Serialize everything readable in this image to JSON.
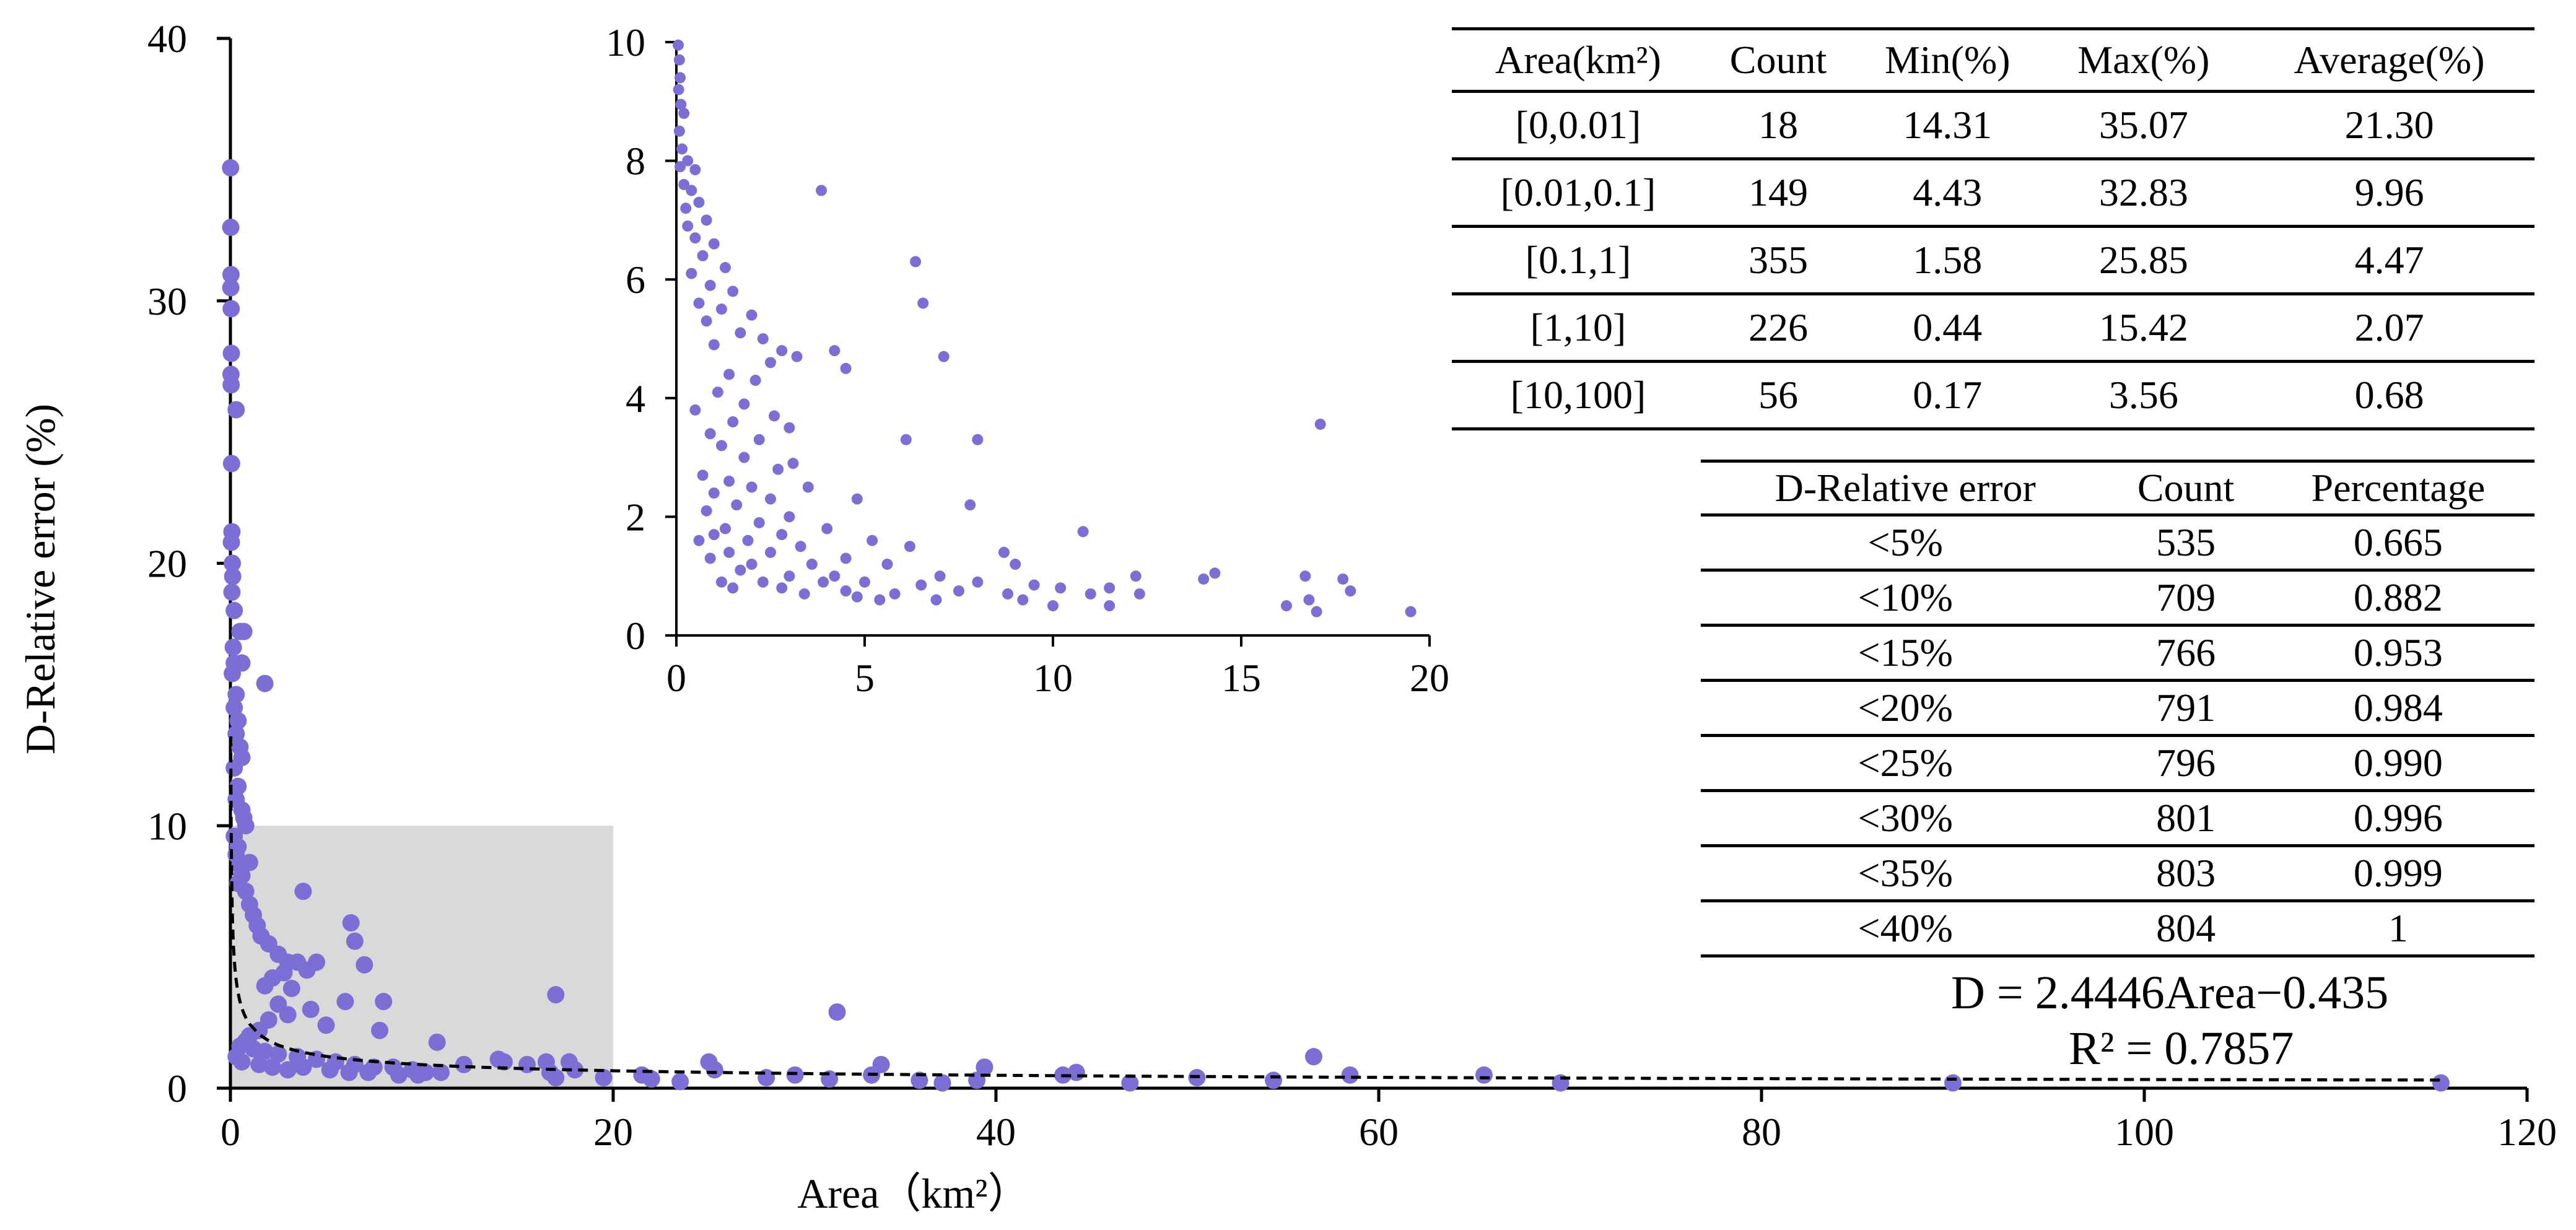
{
  "chart_data": [
    {
      "id": "main",
      "type": "scatter",
      "xlabel": "Area（km²）",
      "ylabel": "D-Relative error (%)",
      "xlim": [
        0,
        120
      ],
      "ylim": [
        0,
        40
      ],
      "xticks": [
        "0",
        "20",
        "40",
        "60",
        "80",
        "100",
        "120"
      ],
      "yticks": [
        "0",
        "10",
        "20",
        "30",
        "40"
      ],
      "marker_color": "#7B6FD6",
      "highlight_region": {
        "x": [
          0,
          20
        ],
        "y": [
          0,
          10
        ],
        "color": "#D9D9D9"
      },
      "trendline": {
        "type": "power",
        "a": 2.4446,
        "b": -0.435,
        "style": "dashed",
        "color": "#000000"
      },
      "points": [
        [
          0.01,
          35.07
        ],
        [
          0.02,
          32.8
        ],
        [
          0.03,
          31.0
        ],
        [
          0.02,
          30.5
        ],
        [
          0.04,
          29.7
        ],
        [
          0.05,
          28.0
        ],
        [
          0.03,
          27.2
        ],
        [
          0.04,
          26.8
        ],
        [
          0.3,
          25.85
        ],
        [
          0.06,
          23.8
        ],
        [
          0.08,
          21.2
        ],
        [
          0.05,
          20.8
        ],
        [
          0.1,
          20.0
        ],
        [
          0.12,
          19.5
        ],
        [
          0.08,
          18.9
        ],
        [
          0.2,
          18.2
        ],
        [
          0.5,
          17.4
        ],
        [
          0.7,
          17.4
        ],
        [
          0.15,
          16.8
        ],
        [
          0.2,
          16.2
        ],
        [
          0.6,
          16.2
        ],
        [
          0.1,
          15.8
        ],
        [
          1.8,
          15.42
        ],
        [
          0.3,
          15.0
        ],
        [
          0.2,
          14.5
        ],
        [
          0.4,
          14.0
        ],
        [
          0.3,
          13.5
        ],
        [
          0.5,
          13.0
        ],
        [
          0.6,
          12.6
        ],
        [
          0.2,
          12.2
        ],
        [
          0.4,
          11.5
        ],
        [
          0.3,
          11.0
        ],
        [
          0.6,
          10.6
        ],
        [
          0.7,
          10.3
        ],
        [
          0.8,
          10.0
        ],
        [
          1.0,
          8.6
        ],
        [
          0.2,
          9.6
        ],
        [
          0.4,
          9.2
        ],
        [
          0.3,
          8.9
        ],
        [
          0.5,
          8.5
        ],
        [
          0.6,
          8.1
        ],
        [
          0.4,
          7.8
        ],
        [
          0.8,
          7.5
        ],
        [
          1.0,
          7.0
        ],
        [
          1.2,
          6.6
        ],
        [
          1.4,
          6.2
        ],
        [
          1.6,
          5.8
        ],
        [
          2.0,
          5.5
        ],
        [
          2.5,
          5.1
        ],
        [
          3.0,
          4.8
        ],
        [
          3.5,
          4.8
        ],
        [
          4.0,
          4.5
        ],
        [
          4.5,
          4.8
        ],
        [
          3.8,
          7.5
        ],
        [
          6.3,
          6.3
        ],
        [
          6.5,
          5.6
        ],
        [
          7.0,
          4.7
        ],
        [
          2.8,
          4.4
        ],
        [
          2.2,
          4.2
        ],
        [
          1.8,
          3.9
        ],
        [
          3.2,
          3.8
        ],
        [
          6.0,
          3.3
        ],
        [
          8.0,
          3.3
        ],
        [
          17.0,
          3.56
        ],
        [
          2.5,
          3.2
        ],
        [
          4.2,
          3.0
        ],
        [
          3.0,
          2.8
        ],
        [
          5.0,
          2.4
        ],
        [
          7.8,
          2.2
        ],
        [
          2.0,
          2.6
        ],
        [
          1.5,
          2.2
        ],
        [
          1.0,
          2.0
        ],
        [
          0.8,
          1.8
        ],
        [
          0.5,
          1.6
        ],
        [
          1.2,
          1.5
        ],
        [
          1.8,
          1.4
        ],
        [
          2.5,
          1.3
        ],
        [
          3.5,
          1.2
        ],
        [
          4.5,
          1.1
        ],
        [
          5.5,
          1.0
        ],
        [
          6.5,
          0.9
        ],
        [
          7.5,
          0.8
        ],
        [
          8.5,
          0.8
        ],
        [
          9.5,
          0.7
        ],
        [
          10.8,
          1.75
        ],
        [
          10.2,
          0.6
        ],
        [
          11.0,
          0.6
        ],
        [
          12.2,
          0.9
        ],
        [
          14.0,
          1.1
        ],
        [
          14.3,
          1.0
        ],
        [
          15.5,
          0.9
        ],
        [
          16.5,
          1.0
        ],
        [
          16.7,
          0.6
        ],
        [
          17.0,
          0.4
        ],
        [
          17.7,
          1.0
        ],
        [
          18.0,
          0.7
        ],
        [
          19.5,
          0.4
        ],
        [
          0.3,
          1.2
        ],
        [
          0.6,
          1.0
        ],
        [
          1.5,
          0.9
        ],
        [
          2.2,
          0.8
        ],
        [
          3.0,
          0.7
        ],
        [
          3.8,
          0.8
        ],
        [
          5.2,
          0.7
        ],
        [
          6.2,
          0.6
        ],
        [
          7.2,
          0.6
        ],
        [
          8.8,
          0.5
        ],
        [
          9.8,
          0.5
        ],
        [
          21.5,
          0.5
        ],
        [
          22.0,
          0.35
        ],
        [
          23.5,
          0.25
        ],
        [
          25.0,
          1.0
        ],
        [
          25.3,
          0.7
        ],
        [
          28.0,
          0.4
        ],
        [
          29.5,
          0.5
        ],
        [
          31.7,
          2.9
        ],
        [
          31.3,
          0.35
        ],
        [
          33.5,
          0.5
        ],
        [
          34.0,
          0.9
        ],
        [
          36.0,
          0.3
        ],
        [
          37.2,
          0.2
        ],
        [
          39.0,
          0.3
        ],
        [
          39.4,
          0.8
        ],
        [
          43.5,
          0.5
        ],
        [
          44.2,
          0.6
        ],
        [
          47.0,
          0.2
        ],
        [
          50.5,
          0.4
        ],
        [
          54.5,
          0.3
        ],
        [
          56.6,
          1.2
        ],
        [
          58.5,
          0.5
        ],
        [
          65.5,
          0.5
        ],
        [
          69.5,
          0.2
        ],
        [
          90.0,
          0.2
        ],
        [
          115.5,
          0.2
        ]
      ]
    },
    {
      "id": "inset",
      "type": "scatter",
      "xlim": [
        0,
        20
      ],
      "ylim": [
        0,
        10
      ],
      "xticks": [
        "0",
        "5",
        "10",
        "15",
        "20"
      ],
      "yticks": [
        "0",
        "2",
        "4",
        "6",
        "8",
        "10"
      ],
      "marker_color": "#7B6FD6",
      "points": [
        [
          0.05,
          9.95
        ],
        [
          0.08,
          9.7
        ],
        [
          0.1,
          9.4
        ],
        [
          0.06,
          9.2
        ],
        [
          0.12,
          8.95
        ],
        [
          0.2,
          8.8
        ],
        [
          0.08,
          8.5
        ],
        [
          0.15,
          8.2
        ],
        [
          0.3,
          8.0
        ],
        [
          0.1,
          7.9
        ],
        [
          0.5,
          7.85
        ],
        [
          0.2,
          7.6
        ],
        [
          0.4,
          7.5
        ],
        [
          0.25,
          7.2
        ],
        [
          0.6,
          7.3
        ],
        [
          0.8,
          7.0
        ],
        [
          0.3,
          6.9
        ],
        [
          0.5,
          6.7
        ],
        [
          1.0,
          6.6
        ],
        [
          0.7,
          6.4
        ],
        [
          1.3,
          6.2
        ],
        [
          0.4,
          6.1
        ],
        [
          0.9,
          5.9
        ],
        [
          1.5,
          5.8
        ],
        [
          0.6,
          5.6
        ],
        [
          1.2,
          5.5
        ],
        [
          2.0,
          5.4
        ],
        [
          0.8,
          5.3
        ],
        [
          1.7,
          5.1
        ],
        [
          2.3,
          5.0
        ],
        [
          1.0,
          4.9
        ],
        [
          2.8,
          4.8
        ],
        [
          3.2,
          4.7
        ],
        [
          2.5,
          4.6
        ],
        [
          4.2,
          4.8
        ],
        [
          4.5,
          4.5
        ],
        [
          1.4,
          4.4
        ],
        [
          2.1,
          4.3
        ],
        [
          1.1,
          4.1
        ],
        [
          1.8,
          3.9
        ],
        [
          0.5,
          3.8
        ],
        [
          2.6,
          3.7
        ],
        [
          1.5,
          3.6
        ],
        [
          3.0,
          3.5
        ],
        [
          0.9,
          3.4
        ],
        [
          2.2,
          3.3
        ],
        [
          6.1,
          3.3
        ],
        [
          8.0,
          3.3
        ],
        [
          1.2,
          3.2
        ],
        [
          1.8,
          3.0
        ],
        [
          3.1,
          2.9
        ],
        [
          2.7,
          2.8
        ],
        [
          0.7,
          2.7
        ],
        [
          1.4,
          2.6
        ],
        [
          2.0,
          2.5
        ],
        [
          3.5,
          2.5
        ],
        [
          1.0,
          2.4
        ],
        [
          2.5,
          2.3
        ],
        [
          4.8,
          2.3
        ],
        [
          7.8,
          2.2
        ],
        [
          1.6,
          2.2
        ],
        [
          0.8,
          2.1
        ],
        [
          3.0,
          2.0
        ],
        [
          2.2,
          1.9
        ],
        [
          1.3,
          1.8
        ],
        [
          4.0,
          1.8
        ],
        [
          1.0,
          1.7
        ],
        [
          2.8,
          1.7
        ],
        [
          10.8,
          1.75
        ],
        [
          0.6,
          1.6
        ],
        [
          1.9,
          1.6
        ],
        [
          3.3,
          1.5
        ],
        [
          5.2,
          1.6
        ],
        [
          6.2,
          1.5
        ],
        [
          1.4,
          1.4
        ],
        [
          2.5,
          1.4
        ],
        [
          4.5,
          1.3
        ],
        [
          8.7,
          1.4
        ],
        [
          0.9,
          1.3
        ],
        [
          2.0,
          1.2
        ],
        [
          3.6,
          1.2
        ],
        [
          5.6,
          1.2
        ],
        [
          9.0,
          1.2
        ],
        [
          1.7,
          1.1
        ],
        [
          3.0,
          1.0
        ],
        [
          4.2,
          1.0
        ],
        [
          7.0,
          1.0
        ],
        [
          14.3,
          1.05
        ],
        [
          14.0,
          0.95
        ],
        [
          12.2,
          1.0
        ],
        [
          16.7,
          1.0
        ],
        [
          17.7,
          0.95
        ],
        [
          2.3,
          0.9
        ],
        [
          3.9,
          0.9
        ],
        [
          5.0,
          0.9
        ],
        [
          6.5,
          0.85
        ],
        [
          8.0,
          0.9
        ],
        [
          9.5,
          0.85
        ],
        [
          10.2,
          0.8
        ],
        [
          11.5,
          0.8
        ],
        [
          1.5,
          0.8
        ],
        [
          2.8,
          0.8
        ],
        [
          4.5,
          0.75
        ],
        [
          5.8,
          0.7
        ],
        [
          7.5,
          0.75
        ],
        [
          8.8,
          0.7
        ],
        [
          11.0,
          0.7
        ],
        [
          12.3,
          0.7
        ],
        [
          16.2,
          0.5
        ],
        [
          17.0,
          0.4
        ],
        [
          16.8,
          0.6
        ],
        [
          17.9,
          0.75
        ],
        [
          19.5,
          0.4
        ],
        [
          17.1,
          3.56
        ],
        [
          3.85,
          7.5
        ],
        [
          6.35,
          6.3
        ],
        [
          6.55,
          5.6
        ],
        [
          7.1,
          4.7
        ],
        [
          9.2,
          0.6
        ],
        [
          10.0,
          0.5
        ],
        [
          5.4,
          0.6
        ],
        [
          6.9,
          0.6
        ],
        [
          3.4,
          0.7
        ],
        [
          4.8,
          0.65
        ],
        [
          11.5,
          0.5
        ],
        [
          1.2,
          0.9
        ]
      ]
    }
  ],
  "stats_table": {
    "headers": [
      "Area(km²)",
      "Count",
      "Min(%)",
      "Max(%)",
      "Average(%)"
    ],
    "rows": [
      [
        "[0,0.01]",
        "18",
        "14.31",
        "35.07",
        "21.30"
      ],
      [
        "[0.01,0.1]",
        "149",
        "4.43",
        "32.83",
        "9.96"
      ],
      [
        "[0.1,1]",
        "355",
        "1.58",
        "25.85",
        "4.47"
      ],
      [
        "[1,10]",
        "226",
        "0.44",
        "15.42",
        "2.07"
      ],
      [
        "[10,100]",
        "56",
        "0.17",
        "3.56",
        "0.68"
      ]
    ]
  },
  "cumulative_table": {
    "headers": [
      "D-Relative error",
      "Count",
      "Percentage"
    ],
    "rows": [
      [
        "<5%",
        "535",
        "0.665"
      ],
      [
        "<10%",
        "709",
        "0.882"
      ],
      [
        "<15%",
        "766",
        "0.953"
      ],
      [
        "<20%",
        "791",
        "0.984"
      ],
      [
        "<25%",
        "796",
        "0.990"
      ],
      [
        "<30%",
        "801",
        "0.996"
      ],
      [
        "<35%",
        "803",
        "0.999"
      ],
      [
        "<40%",
        "804",
        "1"
      ]
    ]
  },
  "equation": "D = 2.4446Area−0.435",
  "r_squared": "R² = 0.7857"
}
